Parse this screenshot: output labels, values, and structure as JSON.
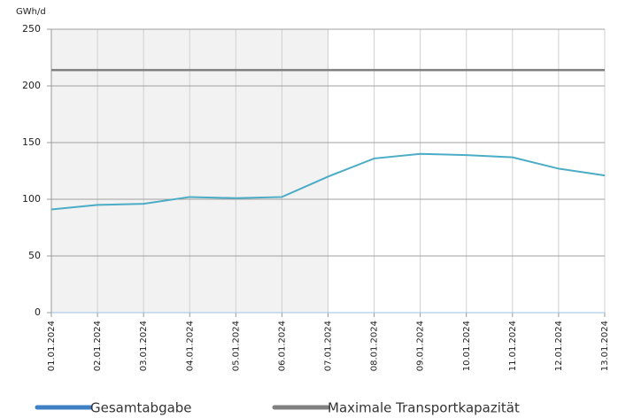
{
  "chart_data": {
    "type": "line",
    "y_label": "GWh/d",
    "categories": [
      "01.01.2024",
      "02.01.2024",
      "03.01.2024",
      "04.01.2024",
      "05.01.2024",
      "06.01.2024",
      "07.01.2024",
      "08.01.2024",
      "09.01.2024",
      "10.01.2024",
      "11.01.2024",
      "12.01.2024",
      "13.01.2024"
    ],
    "series": [
      {
        "name": "Gesamtabgabe",
        "color": "#4bacc6",
        "legend_color": "#3f7fc4",
        "values": [
          91,
          95,
          96,
          102,
          101,
          102,
          120,
          136,
          140,
          139,
          137,
          127,
          121
        ]
      },
      {
        "name": "Maximale Transportkapazität",
        "color": "#808080",
        "values": [
          214,
          214,
          214,
          214,
          214,
          214,
          214,
          214,
          214,
          214,
          214,
          214,
          214
        ]
      }
    ],
    "ylim": [
      0,
      250
    ],
    "yticks": [
      0,
      50,
      100,
      150,
      200,
      250
    ],
    "grid": true,
    "shaded_range": [
      0,
      6
    ],
    "shade_color": "#f2f2f2"
  }
}
